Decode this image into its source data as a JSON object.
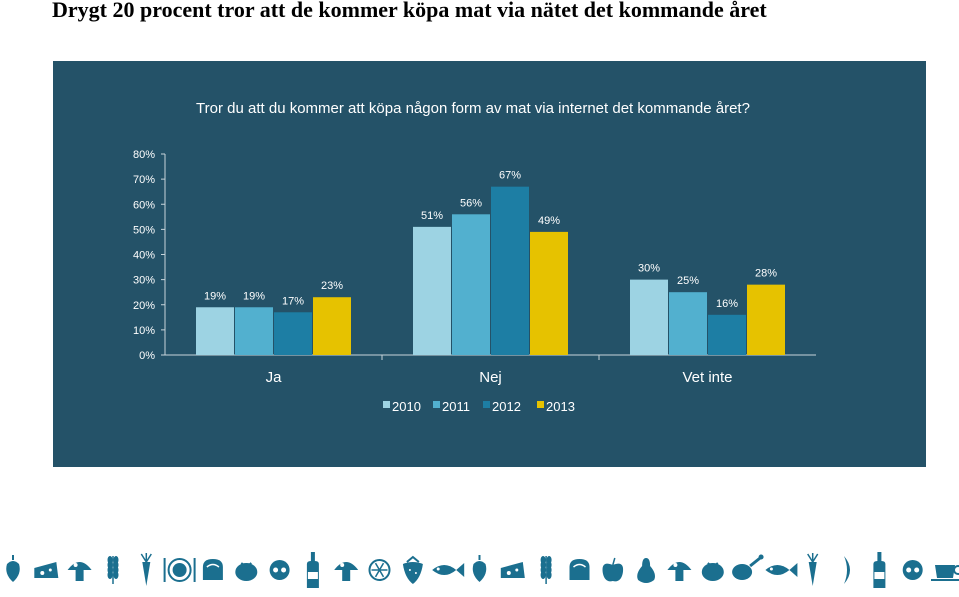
{
  "page": {
    "heading": "Drygt 20 procent tror att de kommer köpa mat via nätet det kommande året"
  },
  "colors": {
    "panel_background": "#245268",
    "text": "#ffffff",
    "axis": "#c8d4da",
    "icons": "#1b6f8f"
  },
  "chart_data": {
    "type": "bar",
    "title": "Tror du att du kommer att köpa någon form av mat via internet det kommande året?",
    "categories": [
      "Ja",
      "Nej",
      "Vet inte"
    ],
    "series": [
      {
        "name": "2010",
        "values": [
          19,
          51,
          30
        ],
        "color": "#9dd3e3"
      },
      {
        "name": "2011",
        "values": [
          19,
          56,
          25
        ],
        "color": "#52b0cf"
      },
      {
        "name": "2012",
        "values": [
          17,
          67,
          16
        ],
        "color": "#1d7ea4"
      },
      {
        "name": "2013",
        "values": [
          23,
          49,
          28
        ],
        "color": "#e6c200"
      }
    ],
    "value_labels": [
      [
        "19%",
        "51%",
        "30%"
      ],
      [
        "19%",
        "56%",
        "25%"
      ],
      [
        "17%",
        "67%",
        "16%"
      ],
      [
        "23%",
        "49%",
        "28%"
      ]
    ],
    "ytick_labels": [
      "0%",
      "10%",
      "20%",
      "30%",
      "40%",
      "50%",
      "60%",
      "70%",
      "80%"
    ],
    "ylim": [
      0,
      80
    ],
    "ylabel": "",
    "xlabel": "",
    "grid": false,
    "legend_position": "bottom"
  },
  "footer_icons": [
    "pepper-icon",
    "cheese-icon",
    "mushroom-icon",
    "wheat-icon",
    "carrot-icon",
    "plate-icon",
    "bread-icon",
    "tomato-icon",
    "tomato-slice-icon",
    "bottle-icon",
    "mushroom-icon",
    "lemon-slice-icon",
    "strawberry-icon",
    "fish-icon",
    "pepper-icon",
    "cheese-icon",
    "wheat-icon",
    "bread-icon",
    "apple-icon",
    "pear-icon",
    "mushroom-icon",
    "tomato-icon",
    "drumstick-icon",
    "fish-icon",
    "carrot-icon",
    "pea-pod-icon",
    "bottle-icon",
    "tomato-slice-icon",
    "cup-icon"
  ]
}
